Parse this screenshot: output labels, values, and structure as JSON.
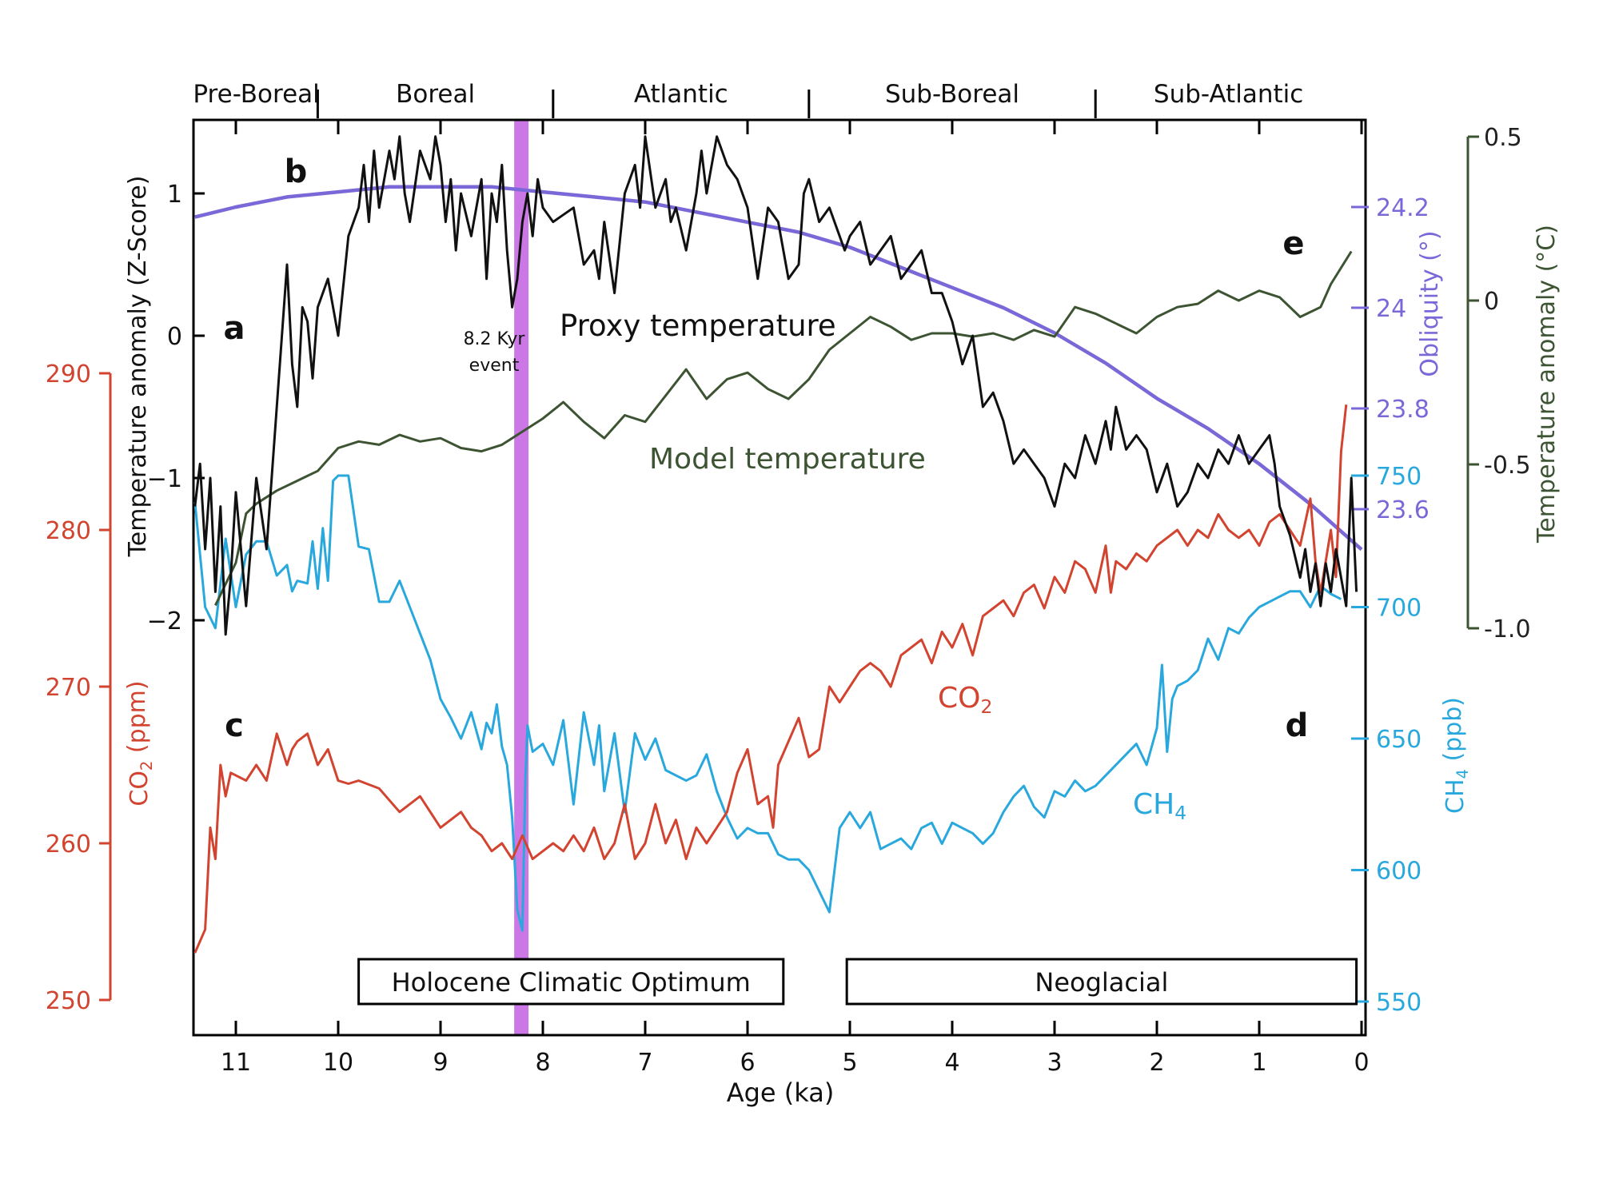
{
  "colors": {
    "proxy": "#111111",
    "model": "#3d5433",
    "obliquity": "#7b68d8",
    "co2": "#d24430",
    "ch4": "#28a8dc",
    "event_band": "#cc77e6"
  },
  "chart_data": {
    "type": "line",
    "xlabel": "Age (ka)",
    "xlim": [
      11.4,
      -0.05
    ],
    "x_ticks": [
      "11",
      "10",
      "9",
      "8",
      "7",
      "6",
      "5",
      "4",
      "3",
      "2",
      "1",
      "0"
    ],
    "periods": [
      {
        "name": "Pre-Boreal",
        "start": 11.4,
        "end": 10.2
      },
      {
        "name": "Boreal",
        "start": 10.2,
        "end": 7.9
      },
      {
        "name": "Atlantic",
        "start": 7.9,
        "end": 5.4
      },
      {
        "name": "Sub-Boreal",
        "start": 5.4,
        "end": 2.6
      },
      {
        "name": "Sub-Atlantic",
        "start": 2.6,
        "end": 0
      }
    ],
    "panel_labels": [
      "a",
      "b",
      "c",
      "d",
      "e"
    ],
    "event": {
      "label_line1": "8.2 Kyr",
      "label_line2": "event",
      "start": 8.28,
      "end": 8.14
    },
    "intervals": [
      {
        "label": "Holocene Climatic Optimum",
        "start": 9.8,
        "end": 5.65
      },
      {
        "label": "Neoglacial",
        "start": 5.03,
        "end": 0.05
      }
    ],
    "axes": {
      "proxy": {
        "label": "Temperature anomaly (Z-Score)",
        "ticks": [
          "1",
          "0",
          "−1",
          "−2"
        ],
        "ylim": [
          -2.35,
          1.45
        ]
      },
      "co2": {
        "label_main": "CO",
        "label_sub": "2",
        "label_tail": " (ppm)",
        "ticks": [
          "290",
          "280",
          "270",
          "260",
          "250"
        ],
        "ylim": [
          250,
          290
        ]
      },
      "obliquity": {
        "label": "Obliquity (°)",
        "ticks": [
          "24.2",
          "24",
          "23.8",
          "23.6"
        ],
        "ylim": [
          23.2,
          24.45
        ]
      },
      "ch4": {
        "label_main": "CH",
        "label_sub": "4",
        "label_tail": " (ppb)",
        "ticks": [
          "750",
          "700",
          "650",
          "600",
          "550"
        ],
        "ylim": [
          550,
          750
        ]
      },
      "model": {
        "label": "Temperature anomaly (°C)",
        "ticks": [
          "0.5",
          "0",
          "-0.5",
          "-1.0"
        ],
        "ylim": [
          -1.0,
          0.5
        ]
      }
    },
    "series_labels": {
      "proxy": "Proxy temperature",
      "model": "Model temperature",
      "co2_main": "CO",
      "co2_sub": "2",
      "ch4_main": "CH",
      "ch4_sub": "4"
    },
    "series": [
      {
        "key": "proxy",
        "x": [
          11.4,
          11.35,
          11.3,
          11.25,
          11.2,
          11.15,
          11.1,
          11.05,
          11.0,
          10.9,
          10.8,
          10.7,
          10.6,
          10.55,
          10.5,
          10.45,
          10.4,
          10.35,
          10.3,
          10.25,
          10.2,
          10.1,
          10.0,
          9.9,
          9.8,
          9.75,
          9.7,
          9.65,
          9.6,
          9.5,
          9.45,
          9.4,
          9.35,
          9.3,
          9.2,
          9.1,
          9.05,
          9.0,
          8.95,
          8.9,
          8.85,
          8.8,
          8.7,
          8.65,
          8.6,
          8.55,
          8.5,
          8.45,
          8.4,
          8.35,
          8.3,
          8.25,
          8.2,
          8.15,
          8.1,
          8.05,
          8.0,
          7.9,
          7.8,
          7.7,
          7.6,
          7.5,
          7.45,
          7.4,
          7.3,
          7.2,
          7.1,
          7.05,
          7.0,
          6.9,
          6.8,
          6.75,
          6.7,
          6.6,
          6.5,
          6.45,
          6.4,
          6.3,
          6.2,
          6.1,
          6.0,
          5.9,
          5.8,
          5.7,
          5.6,
          5.5,
          5.45,
          5.4,
          5.3,
          5.2,
          5.05,
          5.0,
          4.9,
          4.8,
          4.7,
          4.6,
          4.5,
          4.4,
          4.3,
          4.2,
          4.1,
          4.0,
          3.9,
          3.8,
          3.7,
          3.6,
          3.5,
          3.4,
          3.3,
          3.2,
          3.1,
          3.0,
          2.9,
          2.8,
          2.7,
          2.6,
          2.5,
          2.45,
          2.4,
          2.3,
          2.2,
          2.1,
          2.0,
          1.9,
          1.8,
          1.7,
          1.6,
          1.5,
          1.4,
          1.3,
          1.2,
          1.1,
          1.0,
          0.9,
          0.85,
          0.8,
          0.7,
          0.6,
          0.55,
          0.5,
          0.45,
          0.4,
          0.35,
          0.3,
          0.25,
          0.2,
          0.15,
          0.1,
          0.05
        ],
        "y": [
          -1.2,
          -0.9,
          -1.5,
          -1.0,
          -1.8,
          -1.2,
          -2.1,
          -1.7,
          -1.1,
          -1.9,
          -1.0,
          -1.5,
          -0.5,
          0.0,
          0.5,
          -0.2,
          -0.5,
          0.2,
          0.1,
          -0.3,
          0.2,
          0.4,
          0.0,
          0.7,
          0.9,
          1.2,
          0.8,
          1.3,
          0.9,
          1.3,
          1.1,
          1.4,
          1.0,
          0.8,
          1.3,
          1.1,
          1.4,
          1.2,
          0.8,
          1.1,
          0.6,
          1.0,
          0.7,
          0.9,
          1.1,
          0.4,
          1.0,
          0.8,
          1.2,
          0.6,
          0.2,
          0.4,
          0.8,
          1.0,
          0.7,
          1.1,
          0.9,
          0.8,
          0.85,
          0.9,
          0.5,
          0.6,
          0.4,
          0.8,
          0.3,
          1.0,
          1.2,
          0.9,
          1.4,
          0.9,
          1.1,
          0.8,
          0.9,
          0.6,
          1.0,
          1.3,
          1.0,
          1.4,
          1.2,
          1.1,
          0.9,
          0.4,
          0.9,
          0.8,
          0.4,
          0.5,
          1.0,
          1.1,
          0.8,
          0.9,
          0.6,
          0.7,
          0.8,
          0.5,
          0.6,
          0.7,
          0.4,
          0.5,
          0.6,
          0.3,
          0.3,
          0.1,
          -0.2,
          0.0,
          -0.5,
          -0.4,
          -0.6,
          -0.9,
          -0.8,
          -0.9,
          -1.0,
          -1.2,
          -0.9,
          -1.0,
          -0.7,
          -0.9,
          -0.6,
          -0.8,
          -0.5,
          -0.8,
          -0.7,
          -0.8,
          -1.1,
          -0.9,
          -1.2,
          -1.1,
          -0.9,
          -1.0,
          -0.8,
          -0.9,
          -0.7,
          -0.9,
          -0.8,
          -0.7,
          -0.9,
          -1.2,
          -1.4,
          -1.7,
          -1.5,
          -1.8,
          -1.6,
          -1.9,
          -1.6,
          -1.8,
          -1.5,
          -1.7,
          -1.9,
          -1.0,
          -1.8
        ]
      },
      {
        "key": "model",
        "x": [
          11.2,
          11.0,
          10.9,
          10.8,
          10.6,
          10.4,
          10.2,
          10.0,
          9.8,
          9.6,
          9.4,
          9.2,
          9.0,
          8.8,
          8.6,
          8.4,
          8.2,
          8.0,
          7.8,
          7.6,
          7.4,
          7.2,
          7.0,
          6.8,
          6.6,
          6.4,
          6.2,
          6.0,
          5.8,
          5.6,
          5.4,
          5.2,
          5.0,
          4.8,
          4.6,
          4.4,
          4.2,
          4.0,
          3.8,
          3.6,
          3.4,
          3.2,
          3.0,
          2.8,
          2.6,
          2.4,
          2.2,
          2.0,
          1.8,
          1.6,
          1.4,
          1.2,
          1.0,
          0.8,
          0.6,
          0.4,
          0.3,
          0.2,
          0.1
        ],
        "y": [
          -0.93,
          -0.8,
          -0.65,
          -0.62,
          -0.58,
          -0.55,
          -0.52,
          -0.45,
          -0.43,
          -0.44,
          -0.41,
          -0.43,
          -0.42,
          -0.45,
          -0.46,
          -0.44,
          -0.4,
          -0.36,
          -0.31,
          -0.37,
          -0.42,
          -0.35,
          -0.37,
          -0.29,
          -0.21,
          -0.3,
          -0.24,
          -0.22,
          -0.27,
          -0.3,
          -0.24,
          -0.15,
          -0.1,
          -0.05,
          -0.08,
          -0.12,
          -0.1,
          -0.1,
          -0.11,
          -0.1,
          -0.12,
          -0.09,
          -0.11,
          -0.02,
          -0.04,
          -0.07,
          -0.1,
          -0.05,
          -0.02,
          -0.01,
          0.03,
          0.0,
          0.03,
          0.01,
          -0.05,
          -0.02,
          0.05,
          0.1,
          0.15
        ]
      },
      {
        "key": "obliquity",
        "x": [
          11.4,
          11.0,
          10.5,
          10.0,
          9.5,
          9.0,
          8.5,
          8.0,
          7.5,
          7.0,
          6.5,
          6.0,
          5.5,
          5.0,
          4.5,
          4.0,
          3.5,
          3.0,
          2.5,
          2.0,
          1.5,
          1.0,
          0.5,
          0.0
        ],
        "y": [
          24.18,
          24.2,
          24.22,
          24.23,
          24.24,
          24.24,
          24.24,
          24.23,
          24.22,
          24.21,
          24.19,
          24.17,
          24.15,
          24.12,
          24.08,
          24.04,
          24.0,
          23.95,
          23.89,
          23.82,
          23.76,
          23.69,
          23.61,
          23.52
        ]
      },
      {
        "key": "co2",
        "x": [
          11.4,
          11.3,
          11.25,
          11.2,
          11.15,
          11.1,
          11.05,
          10.9,
          10.8,
          10.7,
          10.6,
          10.5,
          10.45,
          10.4,
          10.3,
          10.2,
          10.1,
          10.0,
          9.9,
          9.8,
          9.6,
          9.4,
          9.2,
          9.0,
          8.8,
          8.7,
          8.6,
          8.5,
          8.4,
          8.3,
          8.2,
          8.1,
          8.0,
          7.9,
          7.8,
          7.7,
          7.6,
          7.5,
          7.4,
          7.3,
          7.2,
          7.1,
          7.0,
          6.9,
          6.8,
          6.7,
          6.6,
          6.5,
          6.4,
          6.3,
          6.2,
          6.1,
          6.0,
          5.9,
          5.8,
          5.75,
          5.7,
          5.6,
          5.5,
          5.4,
          5.3,
          5.2,
          5.1,
          5.0,
          4.9,
          4.8,
          4.7,
          4.6,
          4.5,
          4.4,
          4.3,
          4.2,
          4.1,
          4.0,
          3.9,
          3.8,
          3.7,
          3.6,
          3.5,
          3.4,
          3.3,
          3.2,
          3.1,
          3.0,
          2.9,
          2.8,
          2.7,
          2.6,
          2.5,
          2.45,
          2.4,
          2.3,
          2.2,
          2.1,
          2.0,
          1.9,
          1.8,
          1.7,
          1.6,
          1.5,
          1.4,
          1.3,
          1.2,
          1.1,
          1.0,
          0.9,
          0.8,
          0.7,
          0.6,
          0.5,
          0.45,
          0.4,
          0.3,
          0.25,
          0.2,
          0.15
        ],
        "y": [
          253,
          254.5,
          261,
          259,
          265,
          263,
          264.5,
          264,
          265,
          264,
          267,
          265,
          266,
          266.5,
          267,
          265,
          266,
          264,
          263.8,
          264,
          263.5,
          262,
          263,
          261,
          262,
          261,
          260.5,
          259.5,
          260,
          259,
          260.5,
          259,
          259.5,
          260,
          259.5,
          260.5,
          259.5,
          261,
          259,
          260,
          262.5,
          259,
          260,
          262.5,
          260,
          261.5,
          259,
          261,
          260,
          261,
          262,
          264.5,
          266,
          262.5,
          263,
          261,
          265,
          266.5,
          268,
          265.5,
          266,
          270,
          269,
          270,
          271,
          271.5,
          271,
          270,
          272,
          272.5,
          273,
          271.5,
          273.5,
          272.5,
          274,
          272,
          274.5,
          275,
          275.5,
          274.5,
          276,
          276.5,
          275,
          277,
          276,
          278,
          277.5,
          276,
          279,
          276,
          278,
          277.5,
          278.5,
          278,
          279,
          279.5,
          280,
          279,
          280,
          279.5,
          281,
          280,
          279.5,
          280,
          279,
          280.5,
          281,
          280,
          279,
          282,
          278,
          276,
          280,
          277,
          285,
          288
        ]
      },
      {
        "key": "ch4",
        "x": [
          11.4,
          11.3,
          11.2,
          11.1,
          11.0,
          10.9,
          10.8,
          10.7,
          10.6,
          10.5,
          10.45,
          10.4,
          10.3,
          10.25,
          10.2,
          10.15,
          10.1,
          10.05,
          10.0,
          9.9,
          9.8,
          9.7,
          9.6,
          9.5,
          9.4,
          9.3,
          9.2,
          9.1,
          9.0,
          8.9,
          8.8,
          8.7,
          8.6,
          8.55,
          8.5,
          8.45,
          8.4,
          8.35,
          8.3,
          8.25,
          8.2,
          8.17,
          8.15,
          8.1,
          8.0,
          7.9,
          7.8,
          7.7,
          7.6,
          7.5,
          7.45,
          7.4,
          7.3,
          7.2,
          7.1,
          7.0,
          6.9,
          6.8,
          6.7,
          6.6,
          6.5,
          6.4,
          6.3,
          6.2,
          6.1,
          6.0,
          5.9,
          5.8,
          5.7,
          5.6,
          5.5,
          5.4,
          5.3,
          5.2,
          5.1,
          5.0,
          4.9,
          4.8,
          4.7,
          4.6,
          4.5,
          4.4,
          4.3,
          4.2,
          4.1,
          4.0,
          3.9,
          3.8,
          3.7,
          3.6,
          3.5,
          3.4,
          3.3,
          3.2,
          3.1,
          3.0,
          2.9,
          2.8,
          2.7,
          2.6,
          2.5,
          2.4,
          2.3,
          2.2,
          2.1,
          2.0,
          1.95,
          1.9,
          1.85,
          1.8,
          1.7,
          1.6,
          1.5,
          1.4,
          1.3,
          1.2,
          1.1,
          1.0,
          0.9,
          0.8,
          0.7,
          0.6,
          0.5,
          0.4,
          0.3,
          0.2
        ],
        "y": [
          740,
          700,
          692,
          726,
          700,
          720,
          725,
          725,
          712,
          716,
          706,
          710,
          709,
          725,
          707,
          730,
          710,
          748,
          750,
          750,
          723,
          722,
          702,
          702,
          710,
          700,
          690,
          680,
          665,
          658,
          650,
          660,
          646,
          656,
          652,
          663,
          647,
          640,
          620,
          585,
          577,
          635,
          655,
          645,
          648,
          640,
          657,
          625,
          660,
          640,
          655,
          630,
          652,
          622,
          652,
          642,
          650,
          638,
          636,
          634,
          636,
          644,
          630,
          620,
          612,
          616,
          614,
          614,
          606,
          604,
          604,
          600,
          592,
          584,
          616,
          622,
          616,
          622,
          608,
          610,
          612,
          608,
          616,
          618,
          610,
          618,
          616,
          614,
          610,
          614,
          622,
          628,
          632,
          624,
          620,
          630,
          628,
          634,
          630,
          632,
          636,
          640,
          644,
          648,
          640,
          654,
          678,
          645,
          665,
          670,
          672,
          676,
          688,
          680,
          692,
          690,
          696,
          700,
          702,
          704,
          706,
          706,
          700,
          708,
          705,
          703
        ]
      }
    ]
  }
}
